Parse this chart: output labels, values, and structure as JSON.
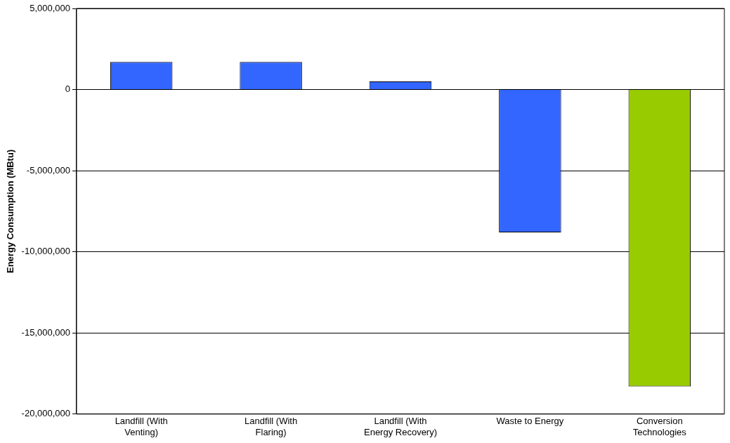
{
  "chart_data": {
    "type": "bar",
    "ylabel": "Energy Consumption (MBtu)",
    "categories": [
      "Landfill (With Venting)",
      "Landfill (With Flaring)",
      "Landfill (With Energy Recovery)",
      "Waste to Energy",
      "Conversion Technologies"
    ],
    "values": [
      1700000,
      1700000,
      500000,
      -8800000,
      -18300000
    ],
    "colors": [
      "#3366ff",
      "#3366ff",
      "#3366ff",
      "#3366ff",
      "#99cc00"
    ],
    "ylim": [
      -20000000,
      5000000
    ],
    "yticks": [
      {
        "value": -20000000,
        "label": "-20,000,000"
      },
      {
        "value": -15000000,
        "label": "-15,000,000"
      },
      {
        "value": -10000000,
        "label": "-10,000,000"
      },
      {
        "value": -5000000,
        "label": "-5,000,000"
      },
      0,
      {
        "value": 5000000,
        "label": "5,000,000"
      }
    ],
    "grid": "y",
    "legend": false
  }
}
